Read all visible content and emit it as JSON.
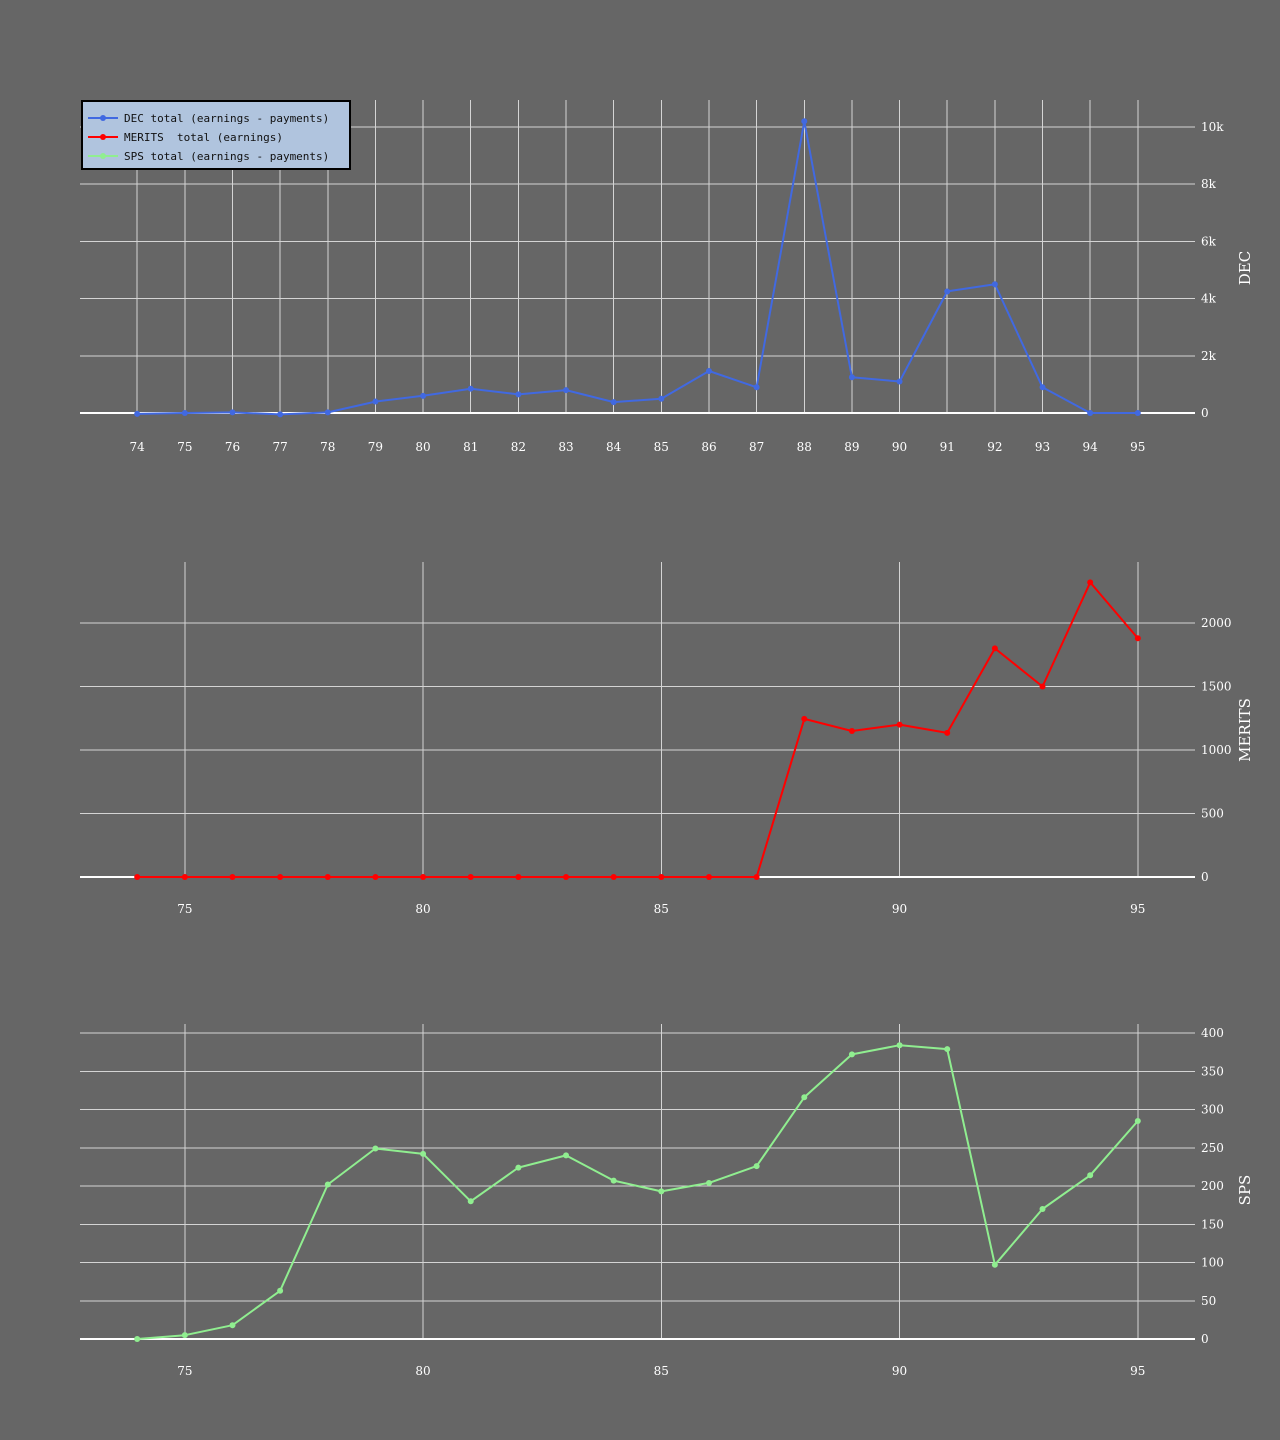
{
  "chart_data": [
    {
      "type": "line",
      "ylabel": "DEC",
      "x": [
        74,
        75,
        76,
        77,
        78,
        79,
        80,
        81,
        82,
        83,
        84,
        85,
        86,
        87,
        88,
        89,
        90,
        91,
        92,
        93,
        94,
        95
      ],
      "x_ticks": [
        74,
        75,
        76,
        77,
        78,
        79,
        80,
        81,
        82,
        83,
        84,
        85,
        86,
        87,
        88,
        89,
        90,
        91,
        92,
        93,
        94,
        95
      ],
      "xlim": [
        72.8,
        96.2
      ],
      "ylim": [
        0,
        10000
      ],
      "y_ticks": [
        0,
        2000,
        4000,
        6000,
        8000,
        10000
      ],
      "y_tick_labels": [
        "0",
        "2k",
        "4k",
        "6k",
        "8k",
        "10k"
      ],
      "grid": true,
      "series": [
        {
          "name": "DEC total (earnings - payments)",
          "color": "#4169e1",
          "values": [
            -30,
            0,
            20,
            -50,
            20,
            400,
            600,
            850,
            650,
            800,
            380,
            500,
            1470,
            900,
            10200,
            1250,
            1100,
            4250,
            4500,
            900,
            0,
            0
          ]
        }
      ]
    },
    {
      "type": "line",
      "ylabel": "MERITS",
      "x": [
        74,
        75,
        76,
        77,
        78,
        79,
        80,
        81,
        82,
        83,
        84,
        85,
        86,
        87,
        88,
        89,
        90,
        91,
        92,
        93,
        94,
        95
      ],
      "x_ticks": [
        75,
        80,
        85,
        90,
        95
      ],
      "xlim": [
        72.8,
        96.2
      ],
      "ylim": [
        0,
        2000
      ],
      "y_ticks": [
        0,
        500,
        1000,
        1500,
        2000
      ],
      "y_tick_labels": [
        "0",
        "500",
        "1000",
        "1500",
        "2000"
      ],
      "grid": true,
      "series": [
        {
          "name": "MERITS  total (earnings)",
          "color": "#ff0000",
          "values": [
            0,
            0,
            0,
            0,
            0,
            0,
            0,
            0,
            0,
            0,
            0,
            0,
            0,
            0,
            1245,
            1150,
            1200,
            1135,
            1800,
            1500,
            2320,
            1880
          ]
        }
      ]
    },
    {
      "type": "line",
      "ylabel": "SPS",
      "x": [
        74,
        75,
        76,
        77,
        78,
        79,
        80,
        81,
        82,
        83,
        84,
        85,
        86,
        87,
        88,
        89,
        90,
        91,
        92,
        93,
        94,
        95
      ],
      "x_ticks": [
        75,
        80,
        85,
        90,
        95
      ],
      "xlim": [
        72.8,
        96.2
      ],
      "ylim": [
        0,
        400
      ],
      "y_ticks": [
        0,
        50,
        100,
        150,
        200,
        250,
        300,
        350,
        400
      ],
      "y_tick_labels": [
        "0",
        "50",
        "100",
        "150",
        "200",
        "250",
        "300",
        "350",
        "400"
      ],
      "grid": true,
      "series": [
        {
          "name": "SPS total (earnings - payments)",
          "color": "#90ee90",
          "values": [
            0,
            5,
            18,
            63,
            202,
            249,
            242,
            180,
            224,
            240,
            207,
            193,
            204,
            226,
            316,
            372,
            384,
            379,
            97,
            170,
            214,
            285
          ]
        }
      ]
    }
  ],
  "legend": {
    "placement": "top-left",
    "items": [
      {
        "label": "DEC total (earnings - payments)",
        "color": "#4169e1"
      },
      {
        "label": "MERITS  total (earnings)",
        "color": "#ff0000"
      },
      {
        "label": "SPS total (earnings - payments)",
        "color": "#90ee90"
      }
    ]
  },
  "colors": {
    "background": "#666666",
    "grid": "#d4d4d4",
    "text": "#ffffff",
    "legend_background": "#b0c4de"
  }
}
